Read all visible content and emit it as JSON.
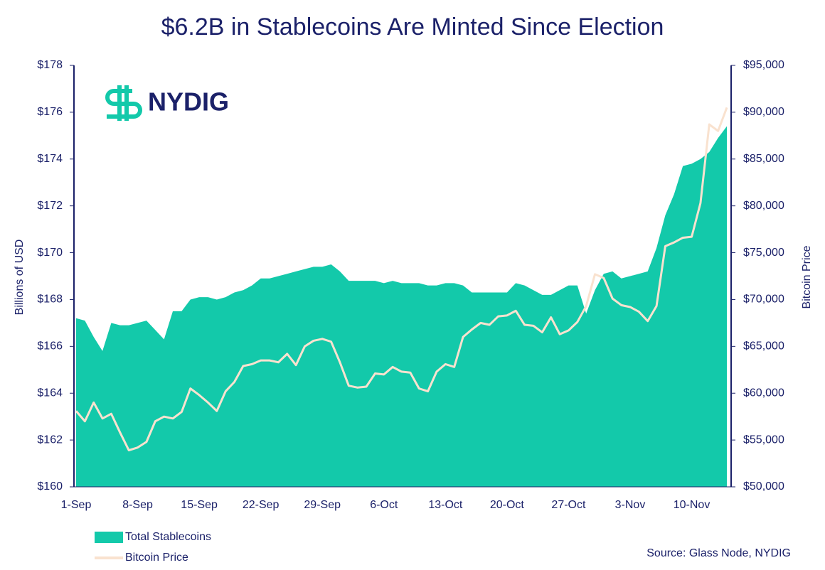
{
  "chart_data": {
    "type": "area",
    "title": "$6.2B in Stablecoins Are Minted Since Election",
    "logo": "NYDIG",
    "source": "Source: Glass Node, NYDIG",
    "ylabel": "Billions of USD",
    "y2label": "Bitcoin Price",
    "categories": [
      "1-Sep",
      null,
      null,
      null,
      null,
      null,
      null,
      "8-Sep",
      null,
      null,
      null,
      null,
      null,
      null,
      "15-Sep",
      null,
      null,
      null,
      null,
      null,
      null,
      "22-Sep",
      null,
      null,
      null,
      null,
      null,
      null,
      "29-Sep",
      null,
      null,
      null,
      null,
      null,
      null,
      "6-Oct",
      null,
      null,
      null,
      null,
      null,
      null,
      "13-Oct",
      null,
      null,
      null,
      null,
      null,
      null,
      "20-Oct",
      null,
      null,
      null,
      null,
      null,
      null,
      "27-Oct",
      null,
      null,
      null,
      null,
      null,
      null,
      "3-Nov",
      null,
      null,
      null,
      null,
      null,
      null,
      "10-Nov",
      null,
      null,
      null,
      null
    ],
    "series": [
      {
        "name": "Total Stablecoins",
        "type": "area",
        "color": "#13c9aa",
        "axis": "y",
        "values": [
          167.2,
          167.1,
          166.4,
          165.8,
          167.0,
          166.9,
          166.9,
          167.0,
          167.1,
          166.7,
          166.3,
          167.5,
          167.5,
          168.0,
          168.1,
          168.1,
          168.0,
          168.1,
          168.3,
          168.4,
          168.6,
          168.9,
          168.9,
          169.0,
          169.1,
          169.2,
          169.3,
          169.4,
          169.4,
          169.5,
          169.2,
          168.8,
          168.8,
          168.8,
          168.8,
          168.7,
          168.8,
          168.7,
          168.7,
          168.7,
          168.6,
          168.6,
          168.7,
          168.7,
          168.6,
          168.3,
          168.3,
          168.3,
          168.3,
          168.3,
          168.7,
          168.6,
          168.4,
          168.2,
          168.2,
          168.4,
          168.6,
          168.6,
          167.4,
          168.4,
          169.1,
          169.2,
          168.9,
          169.0,
          169.1,
          169.2,
          170.2,
          171.6,
          172.5,
          173.7,
          173.8,
          174.0,
          174.3,
          174.9,
          175.4
        ]
      },
      {
        "name": "Bitcoin Price",
        "type": "line",
        "color": "#f9e2cf",
        "axis": "y2",
        "values": [
          58100,
          57000,
          59000,
          57300,
          57800,
          55800,
          53900,
          54200,
          54800,
          57000,
          57500,
          57300,
          58000,
          60500,
          59800,
          59000,
          58100,
          60200,
          61200,
          62900,
          63100,
          63500,
          63500,
          63300,
          64200,
          63000,
          65000,
          65600,
          65800,
          65500,
          63300,
          60800,
          60600,
          60700,
          62100,
          62000,
          62800,
          62300,
          62200,
          60500,
          60200,
          62300,
          63100,
          62800,
          66000,
          66800,
          67500,
          67300,
          68200,
          68300,
          68800,
          67300,
          67200,
          66500,
          68100,
          66300,
          66700,
          67600,
          69300,
          72700,
          72300,
          70100,
          69400,
          69200,
          68700,
          67700,
          69300,
          75700,
          76100,
          76600,
          76700,
          80300,
          88700,
          88000,
          90500
        ]
      }
    ],
    "ylim": [
      160,
      178
    ],
    "yticks": [
      {
        "value": 160,
        "label": "$160"
      },
      {
        "value": 162,
        "label": "$162"
      },
      {
        "value": 164,
        "label": "$164"
      },
      {
        "value": 166,
        "label": "$166"
      },
      {
        "value": 168,
        "label": "$168"
      },
      {
        "value": 170,
        "label": "$170"
      },
      {
        "value": 172,
        "label": "$172"
      },
      {
        "value": 174,
        "label": "$174"
      },
      {
        "value": 176,
        "label": "$176"
      },
      {
        "value": 178,
        "label": "$178"
      }
    ],
    "y2lim": [
      50000,
      95000
    ],
    "y2ticks": [
      {
        "value": 50000,
        "label": "$50,000"
      },
      {
        "value": 55000,
        "label": "$55,000"
      },
      {
        "value": 60000,
        "label": "$60,000"
      },
      {
        "value": 65000,
        "label": "$65,000"
      },
      {
        "value": 70000,
        "label": "$70,000"
      },
      {
        "value": 75000,
        "label": "$75,000"
      },
      {
        "value": 80000,
        "label": "$80,000"
      },
      {
        "value": 85000,
        "label": "$85,000"
      },
      {
        "value": 90000,
        "label": "$90,000"
      },
      {
        "value": 95000,
        "label": "$95,000"
      }
    ]
  }
}
